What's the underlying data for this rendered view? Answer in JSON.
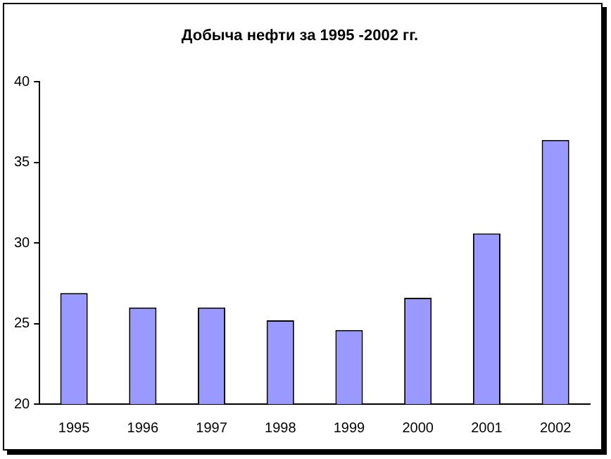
{
  "chart_data": {
    "type": "bar",
    "title": "Добыча нефти за 1995 -2002 гг.",
    "categories": [
      "1995",
      "1996",
      "1997",
      "1998",
      "1999",
      "2000",
      "2001",
      "2002"
    ],
    "values": [
      26.9,
      26.0,
      26.0,
      25.2,
      24.6,
      26.6,
      30.6,
      36.4
    ],
    "color": "#9999ff",
    "ylim": [
      20,
      40
    ],
    "yticks": [
      20,
      25,
      30,
      35,
      40
    ],
    "grid": false,
    "legend": false
  }
}
